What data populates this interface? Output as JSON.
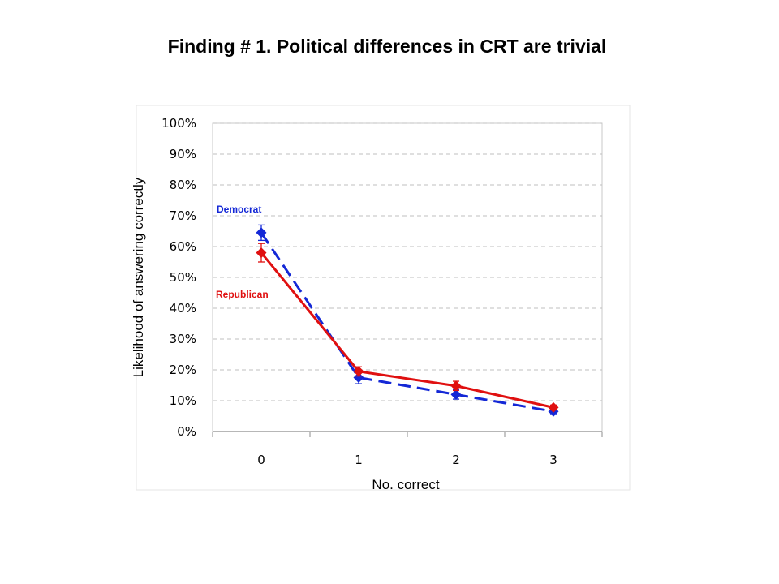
{
  "title": "Finding # 1. Political differences in CRT are trivial",
  "chart_data": {
    "type": "line",
    "xlabel": "No. correct",
    "ylabel": "Likelihood of answering correctly",
    "categories": [
      "0",
      "1",
      "2",
      "3"
    ],
    "ylim": [
      0,
      100
    ],
    "y_ticks": [
      "0%",
      "10%",
      "20%",
      "30%",
      "40%",
      "50%",
      "60%",
      "70%",
      "80%",
      "90%",
      "100%"
    ],
    "grid": true,
    "series": [
      {
        "name": "Democrat",
        "color": "#1428d6",
        "line_style": "dashed",
        "marker": "diamond",
        "values": [
          64.5,
          17.5,
          12,
          6.5
        ],
        "err_low": [
          62,
          15.5,
          10.5,
          5.5
        ],
        "err_high": [
          67,
          19.5,
          13.5,
          7.5
        ]
      },
      {
        "name": "Republican",
        "color": "#e01010",
        "line_style": "solid",
        "marker": "diamond",
        "values": [
          58,
          19.5,
          14.8,
          7.8
        ],
        "err_low": [
          55,
          18,
          13.3,
          7
        ],
        "err_high": [
          61,
          21,
          16.3,
          8.6
        ]
      }
    ]
  }
}
